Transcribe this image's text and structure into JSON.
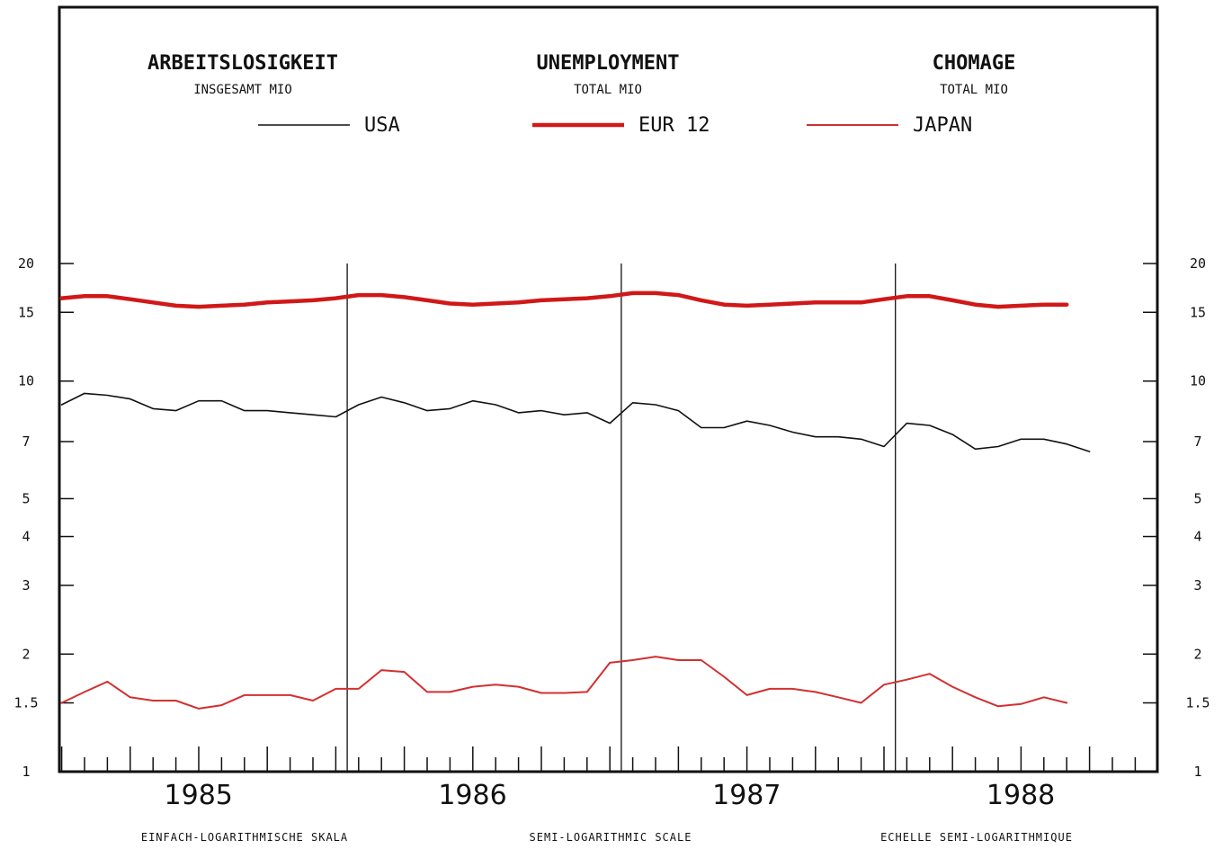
{
  "chart_data": {
    "type": "line",
    "titles": [
      {
        "title": "ARBEITSLOSIGKEIT",
        "subtitle": "INSGESAMT  MIO"
      },
      {
        "title": "UNEMPLOYMENT",
        "subtitle": "TOTAL  MIO"
      },
      {
        "title": "CHOMAGE",
        "subtitle": "TOTAL  MIO"
      }
    ],
    "scale": "log",
    "ylim": [
      1,
      20
    ],
    "yticks": [
      {
        "value": 1,
        "label": "1"
      },
      {
        "value": 1.5,
        "label": "1.5"
      },
      {
        "value": 2,
        "label": "2"
      },
      {
        "value": 3,
        "label": "3"
      },
      {
        "value": 4,
        "label": "4"
      },
      {
        "value": 5,
        "label": "5"
      },
      {
        "value": 7,
        "label": "7"
      },
      {
        "value": 10,
        "label": "10"
      },
      {
        "value": 15,
        "label": "15"
      },
      {
        "value": 20,
        "label": "20"
      }
    ],
    "years": [
      "1985",
      "1986",
      "1987",
      "1988"
    ],
    "footer": [
      "EINFACH-LOGARITHMISCHE SKALA",
      "SEMI-LOGARITHMIC SCALE",
      "ECHELLE SEMI-LOGARITHMIQUE"
    ],
    "grid": false,
    "legend_position": "top",
    "series": [
      {
        "name": "USA",
        "color": "#111111",
        "x": [
          "1984-07",
          "1984-08",
          "1984-09",
          "1984-10",
          "1984-11",
          "1984-12",
          "1985-01",
          "1985-02",
          "1985-03",
          "1985-04",
          "1985-05",
          "1985-06",
          "1985-07",
          "1985-08",
          "1985-09",
          "1985-10",
          "1985-11",
          "1985-12",
          "1986-01",
          "1986-02",
          "1986-03",
          "1986-04",
          "1986-05",
          "1986-06",
          "1986-07",
          "1986-08",
          "1986-09",
          "1986-10",
          "1986-11",
          "1986-12",
          "1987-01",
          "1987-02",
          "1987-03",
          "1987-04",
          "1987-05",
          "1987-06",
          "1987-07",
          "1987-08",
          "1987-09",
          "1987-10",
          "1987-11",
          "1987-12",
          "1988-01",
          "1988-02",
          "1988-03",
          "1988-04"
        ],
        "values": [
          8.7,
          9.3,
          9.2,
          9.0,
          8.5,
          8.4,
          8.9,
          8.9,
          8.4,
          8.4,
          8.3,
          8.2,
          8.1,
          8.7,
          9.1,
          8.8,
          8.4,
          8.5,
          8.9,
          8.7,
          8.3,
          8.4,
          8.2,
          8.3,
          7.8,
          8.8,
          8.7,
          8.4,
          7.6,
          7.6,
          7.9,
          7.7,
          7.4,
          7.2,
          7.2,
          7.1,
          6.8,
          7.8,
          7.7,
          7.3,
          6.7,
          6.8,
          7.1,
          7.1,
          6.9,
          6.6
        ]
      },
      {
        "name": "EUR 12",
        "color": "#d01818",
        "x": [
          "1984-07",
          "1984-08",
          "1984-09",
          "1984-10",
          "1984-11",
          "1984-12",
          "1985-01",
          "1985-02",
          "1985-03",
          "1985-04",
          "1985-05",
          "1985-06",
          "1985-07",
          "1985-08",
          "1985-09",
          "1985-10",
          "1985-11",
          "1985-12",
          "1986-01",
          "1986-02",
          "1986-03",
          "1986-04",
          "1986-05",
          "1986-06",
          "1986-07",
          "1986-08",
          "1986-09",
          "1986-10",
          "1986-11",
          "1986-12",
          "1987-01",
          "1987-02",
          "1987-03",
          "1987-04",
          "1987-05",
          "1987-06",
          "1987-07",
          "1987-08",
          "1987-09",
          "1987-10",
          "1987-11",
          "1987-12",
          "1988-01",
          "1988-02",
          "1988-03"
        ],
        "values": [
          16.3,
          16.5,
          16.5,
          16.2,
          15.9,
          15.6,
          15.5,
          15.6,
          15.7,
          15.9,
          16.0,
          16.1,
          16.3,
          16.6,
          16.6,
          16.4,
          16.1,
          15.8,
          15.7,
          15.8,
          15.9,
          16.1,
          16.2,
          16.3,
          16.5,
          16.8,
          16.8,
          16.6,
          16.1,
          15.7,
          15.6,
          15.7,
          15.8,
          15.9,
          15.9,
          15.9,
          16.2,
          16.5,
          16.5,
          16.1,
          15.7,
          15.5,
          15.6,
          15.7,
          15.7
        ]
      },
      {
        "name": "JAPAN",
        "color": "#d23030",
        "x": [
          "1984-07",
          "1984-08",
          "1984-09",
          "1984-10",
          "1984-11",
          "1984-12",
          "1985-01",
          "1985-02",
          "1985-03",
          "1985-04",
          "1985-05",
          "1985-06",
          "1985-07",
          "1985-08",
          "1985-09",
          "1985-10",
          "1985-11",
          "1985-12",
          "1986-01",
          "1986-02",
          "1986-03",
          "1986-04",
          "1986-05",
          "1986-06",
          "1986-07",
          "1986-08",
          "1986-09",
          "1986-10",
          "1986-11",
          "1986-12",
          "1987-01",
          "1987-02",
          "1987-03",
          "1987-04",
          "1987-05",
          "1987-06",
          "1987-07",
          "1987-08",
          "1987-09",
          "1987-10",
          "1987-11",
          "1987-12",
          "1988-01",
          "1988-02",
          "1988-03"
        ],
        "values": [
          1.5,
          1.6,
          1.7,
          1.55,
          1.52,
          1.52,
          1.45,
          1.48,
          1.57,
          1.57,
          1.57,
          1.52,
          1.63,
          1.63,
          1.82,
          1.8,
          1.6,
          1.6,
          1.65,
          1.67,
          1.65,
          1.59,
          1.59,
          1.6,
          1.9,
          1.93,
          1.97,
          1.93,
          1.93,
          1.75,
          1.57,
          1.63,
          1.63,
          1.6,
          1.55,
          1.5,
          1.67,
          1.72,
          1.78,
          1.65,
          1.55,
          1.47,
          1.49,
          1.55,
          1.5
        ]
      }
    ]
  }
}
